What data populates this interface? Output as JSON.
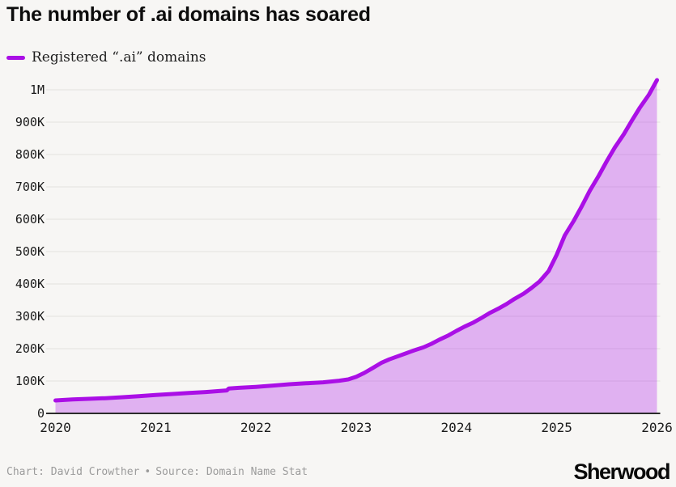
{
  "title": "The number of .ai domains has soared",
  "legend": {
    "label": "Registered “.ai” domains"
  },
  "footer": {
    "credit": "Chart: David Crowther",
    "separator": "•",
    "source": "Source: Domain Name Stat",
    "logo": "Sherwood"
  },
  "colors": {
    "line": "#aa0fe6",
    "area_fill": "rgba(171,16,235,0.30)",
    "background": "#f7f6f4",
    "gridline": "#e3e1de",
    "axis_line": "#2b2b2b",
    "tick_text": "#1a1a1a",
    "credit_text": "#9b9b9b"
  },
  "chart_data": {
    "type": "area",
    "title": "The number of .ai domains has soared",
    "series_name": "Registered “.ai” domains",
    "xlabel": "",
    "ylabel": "",
    "grid": "horizontal",
    "legend_position": "top-left",
    "xlim": [
      2020,
      2026
    ],
    "ylim": [
      0,
      1050000
    ],
    "x_ticks": [
      {
        "value": 2020,
        "label": "2020"
      },
      {
        "value": 2021,
        "label": "2021"
      },
      {
        "value": 2022,
        "label": "2022"
      },
      {
        "value": 2023,
        "label": "2023"
      },
      {
        "value": 2024,
        "label": "2024"
      },
      {
        "value": 2025,
        "label": "2025"
      },
      {
        "value": 2026,
        "label": "2026"
      }
    ],
    "y_ticks": [
      {
        "value": 0,
        "label": "0"
      },
      {
        "value": 100000,
        "label": "100K"
      },
      {
        "value": 200000,
        "label": "200K"
      },
      {
        "value": 300000,
        "label": "300K"
      },
      {
        "value": 400000,
        "label": "400K"
      },
      {
        "value": 500000,
        "label": "500K"
      },
      {
        "value": 600000,
        "label": "600K"
      },
      {
        "value": 700000,
        "label": "700K"
      },
      {
        "value": 800000,
        "label": "800K"
      },
      {
        "value": 900000,
        "label": "900K"
      },
      {
        "value": 1000000,
        "label": "1M"
      }
    ],
    "points": [
      {
        "x": 2020.0,
        "y": 40000
      },
      {
        "x": 2020.17,
        "y": 43000
      },
      {
        "x": 2020.33,
        "y": 45000
      },
      {
        "x": 2020.5,
        "y": 47000
      },
      {
        "x": 2020.67,
        "y": 50000
      },
      {
        "x": 2020.83,
        "y": 53000
      },
      {
        "x": 2021.0,
        "y": 57000
      },
      {
        "x": 2021.17,
        "y": 60000
      },
      {
        "x": 2021.33,
        "y": 63000
      },
      {
        "x": 2021.5,
        "y": 66000
      },
      {
        "x": 2021.67,
        "y": 70000
      },
      {
        "x": 2021.71,
        "y": 71000
      },
      {
        "x": 2021.73,
        "y": 77000
      },
      {
        "x": 2021.83,
        "y": 79000
      },
      {
        "x": 2022.0,
        "y": 82000
      },
      {
        "x": 2022.17,
        "y": 86000
      },
      {
        "x": 2022.33,
        "y": 90000
      },
      {
        "x": 2022.5,
        "y": 93000
      },
      {
        "x": 2022.67,
        "y": 96000
      },
      {
        "x": 2022.83,
        "y": 101000
      },
      {
        "x": 2022.92,
        "y": 105000
      },
      {
        "x": 2023.0,
        "y": 113000
      },
      {
        "x": 2023.08,
        "y": 125000
      },
      {
        "x": 2023.17,
        "y": 141000
      },
      {
        "x": 2023.25,
        "y": 156000
      },
      {
        "x": 2023.33,
        "y": 167000
      },
      {
        "x": 2023.42,
        "y": 177000
      },
      {
        "x": 2023.5,
        "y": 186000
      },
      {
        "x": 2023.58,
        "y": 195000
      },
      {
        "x": 2023.67,
        "y": 204000
      },
      {
        "x": 2023.75,
        "y": 215000
      },
      {
        "x": 2023.83,
        "y": 228000
      },
      {
        "x": 2023.92,
        "y": 241000
      },
      {
        "x": 2024.0,
        "y": 255000
      },
      {
        "x": 2024.08,
        "y": 268000
      },
      {
        "x": 2024.17,
        "y": 281000
      },
      {
        "x": 2024.25,
        "y": 295000
      },
      {
        "x": 2024.33,
        "y": 310000
      },
      {
        "x": 2024.42,
        "y": 324000
      },
      {
        "x": 2024.5,
        "y": 338000
      },
      {
        "x": 2024.58,
        "y": 354000
      },
      {
        "x": 2024.67,
        "y": 370000
      },
      {
        "x": 2024.75,
        "y": 388000
      },
      {
        "x": 2024.83,
        "y": 408000
      },
      {
        "x": 2024.92,
        "y": 440000
      },
      {
        "x": 2025.0,
        "y": 490000
      },
      {
        "x": 2025.08,
        "y": 550000
      },
      {
        "x": 2025.17,
        "y": 595000
      },
      {
        "x": 2025.25,
        "y": 640000
      },
      {
        "x": 2025.33,
        "y": 688000
      },
      {
        "x": 2025.42,
        "y": 735000
      },
      {
        "x": 2025.5,
        "y": 780000
      },
      {
        "x": 2025.58,
        "y": 822000
      },
      {
        "x": 2025.67,
        "y": 863000
      },
      {
        "x": 2025.75,
        "y": 905000
      },
      {
        "x": 2025.83,
        "y": 945000
      },
      {
        "x": 2025.92,
        "y": 985000
      },
      {
        "x": 2026.0,
        "y": 1030000
      }
    ]
  }
}
